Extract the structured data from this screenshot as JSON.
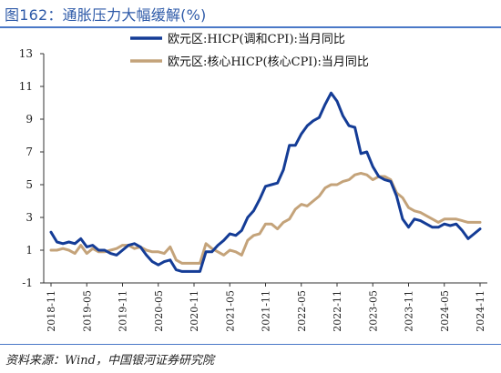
{
  "header": {
    "title": "图162：通胀压力大幅缓解(%)"
  },
  "footer": {
    "source": "资料来源：Wind，中国银河证券研究院"
  },
  "colors": {
    "headline": "#143c96",
    "core": "#c4a37a",
    "title": "#2e5aa8"
  },
  "chart_data": {
    "type": "line",
    "title": "",
    "xlabel": "",
    "ylabel": "",
    "ylim": [
      -1,
      13
    ],
    "yticks": [
      -1,
      1,
      3,
      5,
      7,
      9,
      11,
      13
    ],
    "grid": false,
    "legend_position": "top-center",
    "x_tick_labels": [
      "2018-11",
      "2019-05",
      "2019-11",
      "2020-05",
      "2020-11",
      "2021-05",
      "2021-11",
      "2022-05",
      "2022-11",
      "2023-05",
      "2023-11",
      "2024-05",
      "2024-11"
    ],
    "x": [
      "2018-11",
      "2018-12",
      "2019-01",
      "2019-02",
      "2019-03",
      "2019-04",
      "2019-05",
      "2019-06",
      "2019-07",
      "2019-08",
      "2019-09",
      "2019-10",
      "2019-11",
      "2019-12",
      "2020-01",
      "2020-02",
      "2020-03",
      "2020-04",
      "2020-05",
      "2020-06",
      "2020-07",
      "2020-08",
      "2020-09",
      "2020-10",
      "2020-11",
      "2020-12",
      "2021-01",
      "2021-02",
      "2021-03",
      "2021-04",
      "2021-05",
      "2021-06",
      "2021-07",
      "2021-08",
      "2021-09",
      "2021-10",
      "2021-11",
      "2021-12",
      "2022-01",
      "2022-02",
      "2022-03",
      "2022-04",
      "2022-05",
      "2022-06",
      "2022-07",
      "2022-08",
      "2022-09",
      "2022-10",
      "2022-11",
      "2022-12",
      "2023-01",
      "2023-02",
      "2023-03",
      "2023-04",
      "2023-05",
      "2023-06",
      "2023-07",
      "2023-08",
      "2023-09",
      "2023-10",
      "2023-11",
      "2023-12",
      "2024-01",
      "2024-02",
      "2024-03",
      "2024-04",
      "2024-05",
      "2024-06",
      "2024-07",
      "2024-08",
      "2024-09",
      "2024-10",
      "2024-11"
    ],
    "series": [
      {
        "name": "欧元区:HICP(调和CPI):当月同比",
        "color": "#143c96",
        "values": [
          2.1,
          1.5,
          1.4,
          1.5,
          1.4,
          1.7,
          1.2,
          1.3,
          1.0,
          1.0,
          0.8,
          0.7,
          1.0,
          1.3,
          1.4,
          1.2,
          0.7,
          0.3,
          0.1,
          0.3,
          0.4,
          -0.2,
          -0.3,
          -0.3,
          -0.3,
          -0.3,
          0.9,
          0.9,
          1.3,
          1.6,
          2.0,
          1.9,
          2.2,
          3.0,
          3.4,
          4.1,
          4.9,
          5.0,
          5.1,
          5.9,
          7.4,
          7.4,
          8.1,
          8.6,
          8.9,
          9.1,
          9.9,
          10.6,
          10.1,
          9.2,
          8.6,
          8.5,
          6.9,
          7.0,
          6.1,
          5.5,
          5.3,
          5.2,
          4.3,
          2.9,
          2.4,
          2.9,
          2.8,
          2.6,
          2.4,
          2.4,
          2.6,
          2.5,
          2.6,
          2.2,
          1.7,
          2.0,
          2.3
        ]
      },
      {
        "name": "欧元区:核心HICP(核心CPI):当月同比",
        "color": "#c4a37a",
        "values": [
          1.0,
          1.0,
          1.1,
          1.0,
          0.8,
          1.3,
          0.8,
          1.1,
          0.9,
          0.9,
          1.0,
          1.1,
          1.3,
          1.3,
          1.1,
          1.2,
          1.0,
          0.9,
          0.9,
          0.8,
          1.2,
          0.4,
          0.2,
          0.2,
          0.2,
          0.2,
          1.4,
          1.1,
          0.9,
          0.7,
          1.0,
          0.9,
          0.7,
          1.6,
          1.9,
          2.0,
          2.6,
          2.6,
          2.3,
          2.7,
          2.9,
          3.5,
          3.8,
          3.7,
          4.0,
          4.3,
          4.8,
          5.0,
          5.0,
          5.2,
          5.3,
          5.6,
          5.7,
          5.6,
          5.3,
          5.5,
          5.5,
          5.3,
          4.5,
          4.2,
          3.6,
          3.4,
          3.3,
          3.1,
          2.9,
          2.7,
          2.9,
          2.9,
          2.9,
          2.8,
          2.7,
          2.7,
          2.7
        ]
      }
    ]
  }
}
